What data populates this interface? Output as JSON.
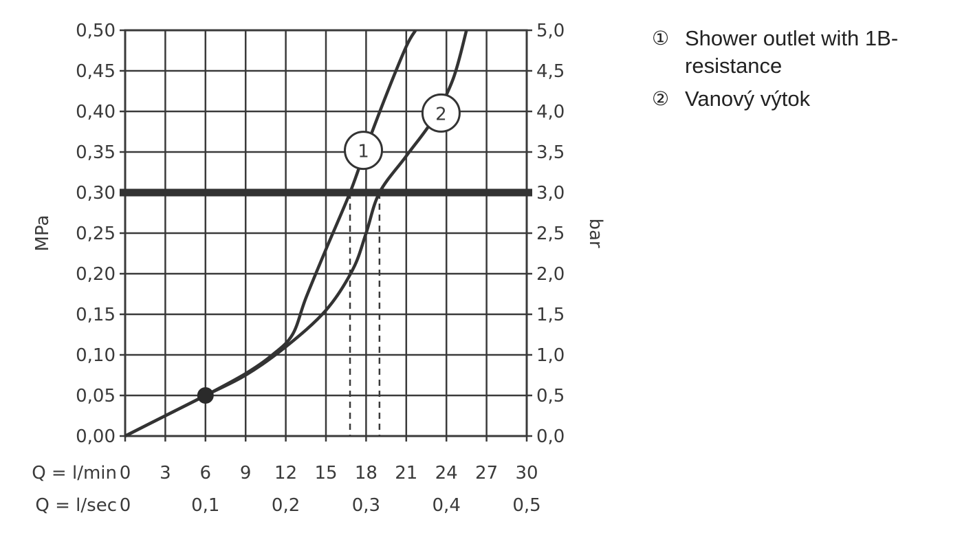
{
  "chart_data": {
    "type": "line",
    "ylabel_left": "MPa",
    "ylabel_right": "bar",
    "ylim": [
      0,
      0.5
    ],
    "xlim": [
      0,
      30
    ],
    "grid": true,
    "y_ticks_left": [
      "0,00",
      "0,05",
      "0,10",
      "0,15",
      "0,20",
      "0,25",
      "0,30",
      "0,35",
      "0,40",
      "0,45",
      "0,50"
    ],
    "y_ticks_right": [
      "0,0",
      "0,5",
      "1,0",
      "1,5",
      "2,0",
      "2,5",
      "3,0",
      "3,5",
      "4,0",
      "4,5",
      "5,0"
    ],
    "x_row1_label": "Q = l/min",
    "x_row1_ticks": [
      "0",
      "3",
      "6",
      "9",
      "12",
      "15",
      "18",
      "21",
      "24",
      "27",
      "30"
    ],
    "x_row2_label": "Q = l/sec",
    "x_row2_ticks": [
      "0",
      "0,1",
      "0,2",
      "0,3",
      "0,4",
      "0,5"
    ],
    "reference_line": {
      "y": 0.3,
      "label": ""
    },
    "marker_point": {
      "x": 6,
      "y": 0.05
    },
    "series": [
      {
        "name": "1",
        "x": [
          0,
          3,
          6,
          9,
          11,
          12.5,
          13.5,
          15,
          16.8,
          18,
          19.5,
          21,
          21.7
        ],
        "values": [
          0,
          0.025,
          0.05,
          0.077,
          0.1,
          0.125,
          0.17,
          0.23,
          0.3,
          0.355,
          0.42,
          0.48,
          0.5
        ]
      },
      {
        "name": "2",
        "x": [
          0,
          3,
          6,
          9,
          12,
          15,
          17,
          18,
          19,
          21,
          23,
          24.5,
          25.5
        ],
        "values": [
          0,
          0.025,
          0.05,
          0.075,
          0.11,
          0.155,
          0.205,
          0.25,
          0.3,
          0.345,
          0.39,
          0.44,
          0.5
        ]
      }
    ],
    "drop_lines_x": [
      16.8,
      19
    ]
  },
  "legend": {
    "items": [
      {
        "marker": "①",
        "text": "Shower outlet with 1B-resistance"
      },
      {
        "marker": "②",
        "text": "Vanový výtok"
      }
    ]
  }
}
